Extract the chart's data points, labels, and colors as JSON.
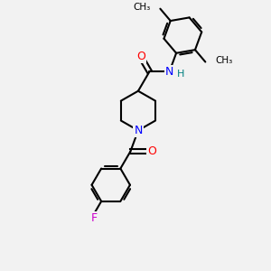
{
  "background_color": "#f2f2f2",
  "bond_color": "#000000",
  "atom_colors": {
    "O": "#ff0000",
    "N": "#0000ff",
    "F": "#cc00cc",
    "H": "#008080",
    "C": "#000000"
  },
  "figsize": [
    3.0,
    3.0
  ],
  "dpi": 100
}
